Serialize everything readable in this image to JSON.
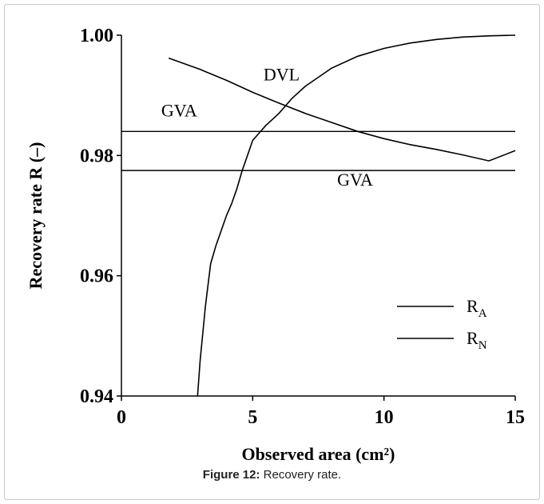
{
  "caption": {
    "label": "Figure 12:",
    "text": " Recovery rate."
  },
  "chart_data": {
    "type": "line",
    "xlabel": "Observed area (cm²)",
    "ylabel": "Recovery rate R (–)",
    "xlim": [
      0,
      15
    ],
    "ylim": [
      0.94,
      1.0
    ],
    "xticks": [
      "0",
      "5",
      "10",
      "15"
    ],
    "yticks": [
      "0.94",
      "0.96",
      "0.98",
      "1.00"
    ],
    "grid": false,
    "legend_position": "right",
    "series": [
      {
        "name": "R_A",
        "x": [
          2.9,
          3.0,
          3.2,
          3.4,
          3.6,
          3.8,
          4.0,
          4.2,
          4.4,
          4.6,
          4.8,
          5.0,
          5.2,
          5.5,
          6.0,
          6.5,
          7.0,
          7.5,
          8.0,
          9.0,
          10.0,
          11.0,
          12.0,
          13.0,
          14.0,
          15.0
        ],
        "y": [
          0.94,
          0.946,
          0.955,
          0.962,
          0.965,
          0.9675,
          0.97,
          0.972,
          0.9745,
          0.9775,
          0.98,
          0.9825,
          0.9835,
          0.985,
          0.987,
          0.9895,
          0.9915,
          0.993,
          0.9945,
          0.9965,
          0.9978,
          0.9987,
          0.9993,
          0.9997,
          0.9999,
          1.0
        ]
      },
      {
        "name": "R_N",
        "x": [
          1.8,
          3.0,
          4.0,
          5.0,
          6.0,
          7.0,
          8.0,
          9.0,
          10.0,
          11.0,
          12.0,
          13.0,
          14.0,
          15.0
        ],
        "y": [
          0.9962,
          0.9943,
          0.9925,
          0.9905,
          0.9887,
          0.987,
          0.9855,
          0.984,
          0.9828,
          0.9818,
          0.981,
          0.9801,
          0.9791,
          0.9808
        ]
      }
    ],
    "reference_lines": [
      {
        "y": 0.984
      },
      {
        "y": 0.9775
      }
    ],
    "annotations": [
      {
        "text": "GVA",
        "x": 2.2,
        "y": 0.9865
      },
      {
        "text": "GVA",
        "x": 8.9,
        "y": 0.975
      },
      {
        "text": "DVL",
        "x": 6.1,
        "y": 0.9925
      }
    ],
    "legend": [
      {
        "label": "R",
        "sub": "A"
      },
      {
        "label": "R",
        "sub": "N"
      }
    ]
  }
}
